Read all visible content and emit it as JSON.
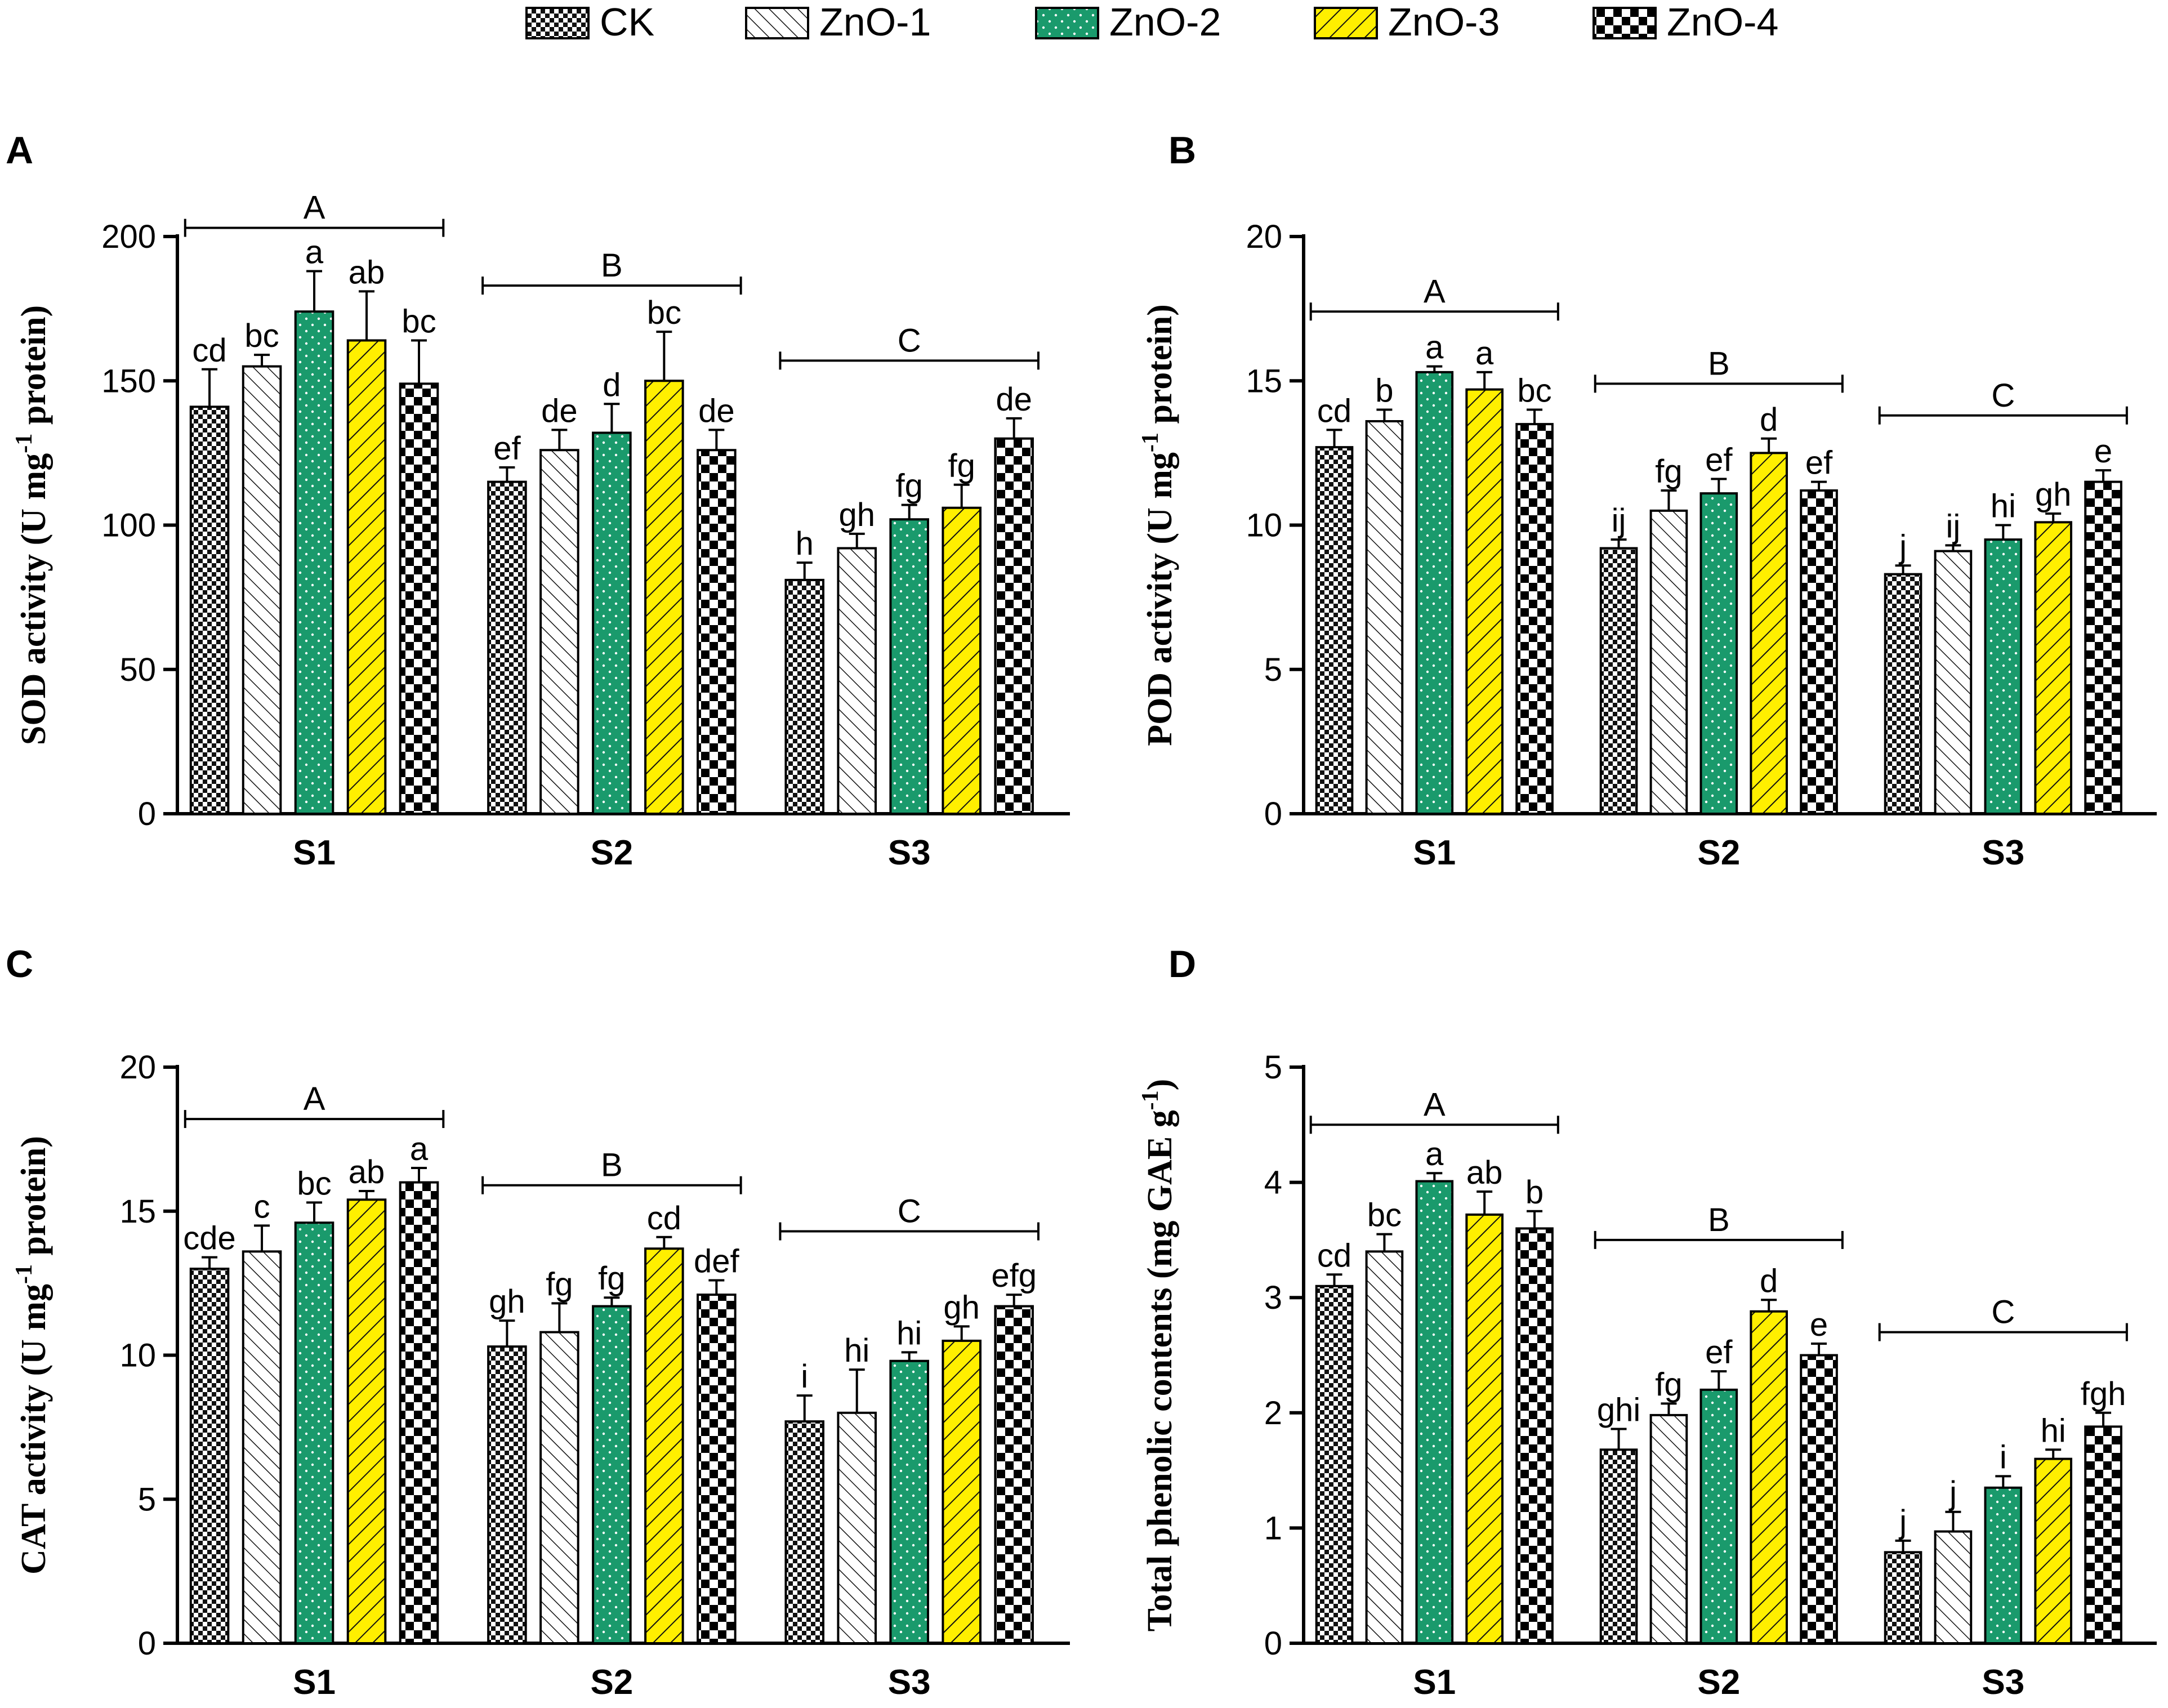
{
  "legend": [
    {
      "label": "CK",
      "pattern": "checker-small",
      "color": "#000000"
    },
    {
      "label": "ZnO-1",
      "pattern": "diagonal",
      "color": "#000000"
    },
    {
      "label": "ZnO-2",
      "pattern": "dots",
      "color": "#1a9a6c"
    },
    {
      "label": "ZnO-3",
      "pattern": "hatch-yellow",
      "color": "#ffef00"
    },
    {
      "label": "ZnO-4",
      "pattern": "checker-large",
      "color": "#000000"
    }
  ],
  "chart_data": [
    {
      "panel": "A",
      "type": "bar",
      "ylabel": "SOD activity (U mg",
      "ylabel_sup": "-1",
      "ylabel_end": " protein)",
      "ylim": [
        0,
        200
      ],
      "yticks": [
        "0",
        "50",
        "100",
        "150",
        "200"
      ],
      "categories": [
        "S1",
        "S2",
        "S3"
      ],
      "series": [
        {
          "name": "CK",
          "values": [
            141,
            115,
            81
          ],
          "errors": [
            13,
            5,
            6
          ],
          "letters": [
            "cd",
            "ef",
            "h"
          ]
        },
        {
          "name": "ZnO-1",
          "values": [
            155,
            126,
            92
          ],
          "errors": [
            4,
            7,
            5
          ],
          "letters": [
            "bc",
            "de",
            "gh"
          ]
        },
        {
          "name": "ZnO-2",
          "values": [
            174,
            132,
            102
          ],
          "errors": [
            14,
            10,
            5
          ],
          "letters": [
            "a",
            "d",
            "fg"
          ]
        },
        {
          "name": "ZnO-3",
          "values": [
            164,
            150,
            106
          ],
          "errors": [
            17,
            17,
            8
          ],
          "letters": [
            "ab",
            "bc",
            "fg"
          ]
        },
        {
          "name": "ZnO-4",
          "values": [
            149,
            126,
            130
          ],
          "errors": [
            15,
            7,
            7
          ],
          "letters": [
            "bc",
            "de",
            "de"
          ]
        }
      ],
      "group_letters": [
        "A",
        "B",
        "C"
      ],
      "group_brackets_y": [
        203,
        183,
        157
      ]
    },
    {
      "panel": "B",
      "type": "bar",
      "ylabel": "POD activity (U mg",
      "ylabel_sup": "-1",
      "ylabel_end": " protein)",
      "ylim": [
        0,
        20
      ],
      "yticks": [
        "0",
        "5",
        "10",
        "15",
        "20"
      ],
      "categories": [
        "S1",
        "S2",
        "S3"
      ],
      "series": [
        {
          "name": "CK",
          "values": [
            12.7,
            9.2,
            8.3
          ],
          "errors": [
            0.6,
            0.3,
            0.3
          ],
          "letters": [
            "cd",
            "ij",
            "j"
          ]
        },
        {
          "name": "ZnO-1",
          "values": [
            13.6,
            10.5,
            9.1
          ],
          "errors": [
            0.4,
            0.7,
            0.2
          ],
          "letters": [
            "b",
            "fg",
            "ij"
          ]
        },
        {
          "name": "ZnO-2",
          "values": [
            15.3,
            11.1,
            9.5
          ],
          "errors": [
            0.2,
            0.5,
            0.5
          ],
          "letters": [
            "a",
            "ef",
            "hi"
          ]
        },
        {
          "name": "ZnO-3",
          "values": [
            14.7,
            12.5,
            10.1
          ],
          "errors": [
            0.6,
            0.5,
            0.3
          ],
          "letters": [
            "a",
            "d",
            "gh"
          ]
        },
        {
          "name": "ZnO-4",
          "values": [
            13.5,
            11.2,
            11.5
          ],
          "errors": [
            0.5,
            0.3,
            0.4
          ],
          "letters": [
            "bc",
            "ef",
            "e"
          ]
        }
      ],
      "group_letters": [
        "A",
        "B",
        "C"
      ],
      "group_brackets_y": [
        17.4,
        14.9,
        13.8
      ]
    },
    {
      "panel": "C",
      "type": "bar",
      "ylabel": "CAT activity (U mg",
      "ylabel_sup": "-1",
      "ylabel_end": " protein)",
      "ylim": [
        0,
        20
      ],
      "yticks": [
        "0",
        "5",
        "10",
        "15",
        "20"
      ],
      "categories": [
        "S1",
        "S2",
        "S3"
      ],
      "series": [
        {
          "name": "CK",
          "values": [
            13.0,
            10.3,
            7.7
          ],
          "errors": [
            0.4,
            0.9,
            0.9
          ],
          "letters": [
            "cde",
            "gh",
            "i"
          ]
        },
        {
          "name": "ZnO-1",
          "values": [
            13.6,
            10.8,
            8.0
          ],
          "errors": [
            0.9,
            1.0,
            1.5
          ],
          "letters": [
            "c",
            "fg",
            "hi"
          ]
        },
        {
          "name": "ZnO-2",
          "values": [
            14.6,
            11.7,
            9.8
          ],
          "errors": [
            0.7,
            0.3,
            0.3
          ],
          "letters": [
            "bc",
            "fg",
            "hi"
          ]
        },
        {
          "name": "ZnO-3",
          "values": [
            15.4,
            13.7,
            10.5
          ],
          "errors": [
            0.3,
            0.4,
            0.5
          ],
          "letters": [
            "ab",
            "cd",
            "gh"
          ]
        },
        {
          "name": "ZnO-4",
          "values": [
            16.0,
            12.1,
            11.7
          ],
          "errors": [
            0.5,
            0.5,
            0.4
          ],
          "letters": [
            "a",
            "def",
            "efg"
          ]
        }
      ],
      "group_letters": [
        "A",
        "B",
        "C"
      ],
      "group_brackets_y": [
        18.2,
        15.9,
        14.3
      ]
    },
    {
      "panel": "D",
      "type": "bar",
      "ylabel": "Total phenolic contents (mg GAE g",
      "ylabel_sup": "-1",
      "ylabel_end": ")",
      "ylim": [
        0,
        5
      ],
      "yticks": [
        "0",
        "1",
        "2",
        "3",
        "4",
        "5"
      ],
      "categories": [
        "S1",
        "S2",
        "S3"
      ],
      "series": [
        {
          "name": "CK",
          "values": [
            3.1,
            1.68,
            0.79
          ],
          "errors": [
            0.1,
            0.18,
            0.1
          ],
          "letters": [
            "cd",
            "ghi",
            "j"
          ]
        },
        {
          "name": "ZnO-1",
          "values": [
            3.4,
            1.98,
            0.97
          ],
          "errors": [
            0.15,
            0.1,
            0.17
          ],
          "letters": [
            "bc",
            "fg",
            "j"
          ]
        },
        {
          "name": "ZnO-2",
          "values": [
            4.01,
            2.2,
            1.35
          ],
          "errors": [
            0.07,
            0.16,
            0.1
          ],
          "letters": [
            "a",
            "ef",
            "i"
          ]
        },
        {
          "name": "ZnO-3",
          "values": [
            3.72,
            2.88,
            1.6
          ],
          "errors": [
            0.2,
            0.1,
            0.08
          ],
          "letters": [
            "ab",
            "d",
            "hi"
          ]
        },
        {
          "name": "ZnO-4",
          "values": [
            3.6,
            2.5,
            1.88
          ],
          "errors": [
            0.15,
            0.1,
            0.12
          ],
          "letters": [
            "b",
            "e",
            "fgh"
          ]
        }
      ],
      "group_letters": [
        "A",
        "B",
        "C"
      ],
      "group_brackets_y": [
        4.5,
        3.5,
        2.7
      ]
    }
  ]
}
